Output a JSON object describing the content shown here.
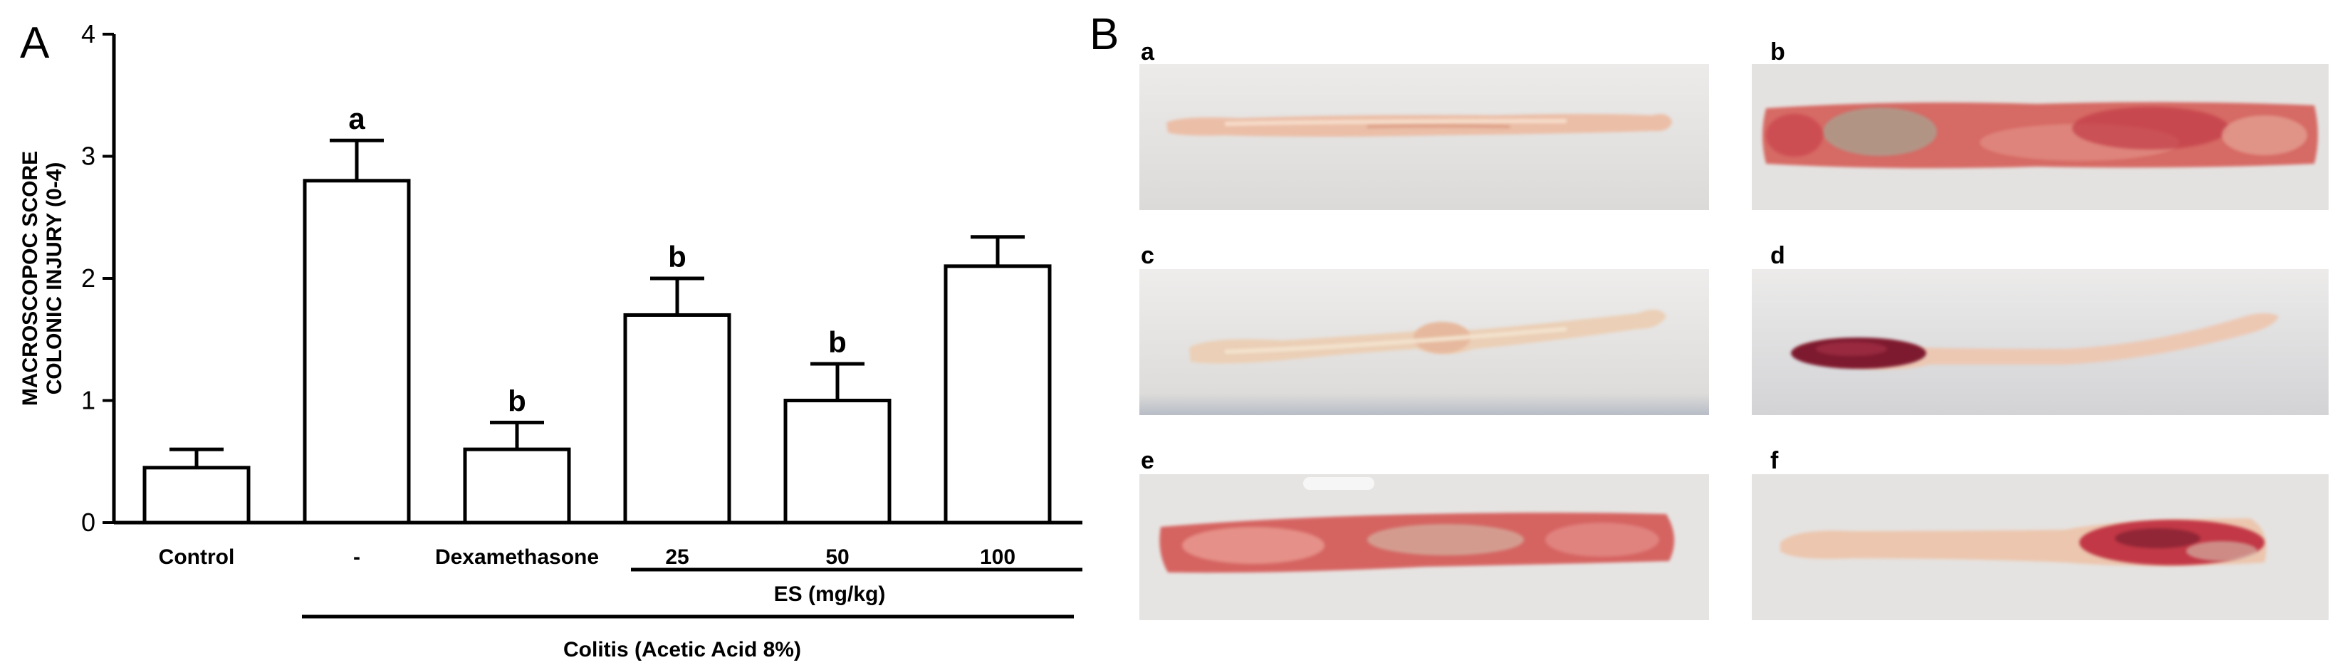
{
  "panels": {
    "a": {
      "letter": "A"
    },
    "b": {
      "letter": "B"
    }
  },
  "chart_data": {
    "type": "bar",
    "ylabel_line1": "MACROSCOPOC SCORE",
    "ylabel_line2": "COLONIC INJURY (0-4)",
    "xlabel": "",
    "ylim": [
      0,
      4
    ],
    "yticks": [
      "0",
      "1",
      "2",
      "3",
      "4"
    ],
    "categories": [
      "Control",
      "-",
      "Dexamethasone",
      "25",
      "50",
      "100"
    ],
    "values": [
      0.45,
      2.8,
      0.6,
      1.7,
      1.0,
      2.1
    ],
    "errors": [
      0.15,
      0.33,
      0.22,
      0.3,
      0.3,
      0.24
    ],
    "significance": [
      "",
      "a",
      "b",
      "b",
      "b",
      ""
    ],
    "group_labels": {
      "es": "ES (mg/kg)",
      "colitis": "Colitis (Acetic Acid 8%)"
    },
    "grid": false
  },
  "photos": [
    {
      "label": "a",
      "icon": "colon-photo-normal"
    },
    {
      "label": "b",
      "icon": "colon-photo-severe-hemorrhage"
    },
    {
      "label": "c",
      "icon": "colon-photo-mild"
    },
    {
      "label": "d",
      "icon": "colon-photo-focal-lesion"
    },
    {
      "label": "e",
      "icon": "colon-photo-severe-inflammation"
    },
    {
      "label": "f",
      "icon": "colon-photo-partial-lesion"
    }
  ],
  "colors": {
    "bar_fill": "#ffffff",
    "bar_stroke": "#000000",
    "photo_background": "#e3e1df",
    "healthy_tissue": "#f1d3bf",
    "inflamed_tissue": "#d85a5a",
    "hemorrhage": "#8f1a2c"
  }
}
